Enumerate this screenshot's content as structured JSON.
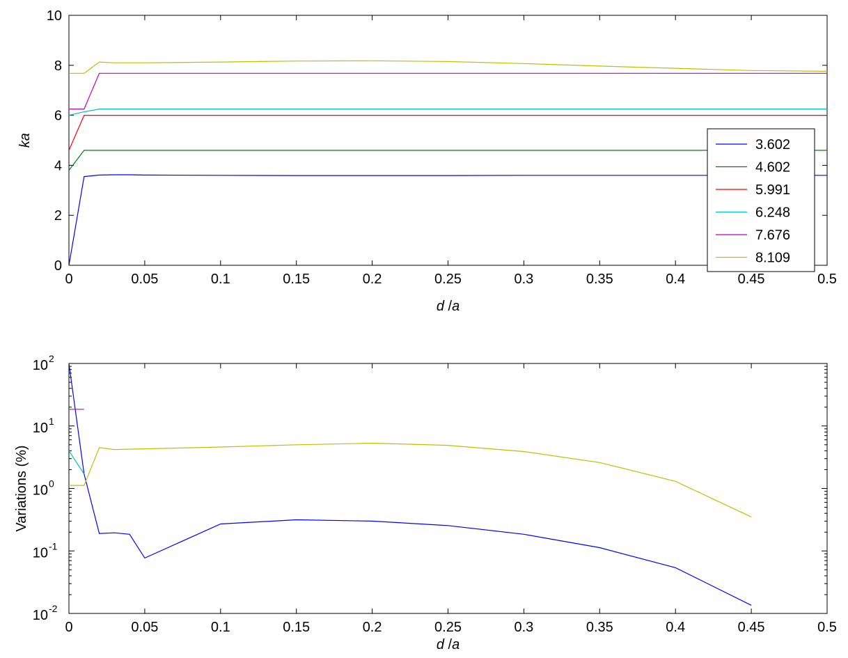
{
  "chart_data": [
    {
      "type": "line",
      "xlabel_parts": [
        "d",
        " /",
        "a"
      ],
      "ylabel": "ka",
      "xlim": [
        0,
        0.5
      ],
      "ylim": [
        0,
        10
      ],
      "yscale": "linear",
      "grid": false,
      "legend_position": "right",
      "x_ticks": [
        "0",
        "0.05",
        "0.1",
        "0.15",
        "0.2",
        "0.25",
        "0.3",
        "0.35",
        "0.4",
        "0.45",
        "0.5"
      ],
      "y_ticks": [
        "0",
        "2",
        "4",
        "6",
        "8",
        "10"
      ],
      "series": [
        {
          "name": "3.602",
          "color": "#0000ff",
          "x": [
            0,
            0.01,
            0.02,
            0.03,
            0.04,
            0.05,
            0.1,
            0.15,
            0.2,
            0.25,
            0.3,
            0.35,
            0.4,
            0.45,
            0.5
          ],
          "y": [
            0.0,
            3.55,
            3.61,
            3.62,
            3.62,
            3.61,
            3.6,
            3.59,
            3.59,
            3.59,
            3.6,
            3.6,
            3.6,
            3.6,
            3.6
          ]
        },
        {
          "name": "4.602",
          "color": "#008000",
          "x": [
            0,
            0.01,
            0.02,
            0.5
          ],
          "y": [
            3.8,
            4.6,
            4.6,
            4.6
          ]
        },
        {
          "name": "5.991",
          "color": "#ff0000",
          "x": [
            0,
            0.01,
            0.02,
            0.5
          ],
          "y": [
            4.6,
            6.0,
            6.0,
            6.0
          ]
        },
        {
          "name": "6.248",
          "color": "#00bfbf",
          "x": [
            0,
            0.01,
            0.02,
            0.5
          ],
          "y": [
            6.0,
            6.14,
            6.25,
            6.25
          ]
        },
        {
          "name": "7.676",
          "color": "#bf00bf",
          "x": [
            0,
            0.01,
            0.02,
            0.5
          ],
          "y": [
            6.25,
            6.25,
            7.68,
            7.68
          ]
        },
        {
          "name": "8.109",
          "color": "#bfbf00",
          "x": [
            0,
            0.01,
            0.02,
            0.03,
            0.05,
            0.1,
            0.15,
            0.2,
            0.25,
            0.3,
            0.35,
            0.4,
            0.45,
            0.5
          ],
          "y": [
            7.68,
            7.68,
            8.13,
            8.1,
            8.1,
            8.13,
            8.17,
            8.18,
            8.15,
            8.07,
            7.97,
            7.88,
            7.79,
            7.76
          ]
        }
      ]
    },
    {
      "type": "line",
      "xlabel_parts": [
        "d",
        " /",
        "a"
      ],
      "ylabel": "Variations (%)",
      "xlim": [
        0,
        0.5
      ],
      "ylim": [
        0.01,
        100
      ],
      "yscale": "log",
      "grid": false,
      "x_ticks": [
        "0",
        "0.05",
        "0.1",
        "0.15",
        "0.2",
        "0.25",
        "0.3",
        "0.35",
        "0.4",
        "0.45",
        "0.5"
      ],
      "y_ticks": [
        {
          "base": "10",
          "exp": "-2"
        },
        {
          "base": "10",
          "exp": "-1"
        },
        {
          "base": "10",
          "exp": "0"
        },
        {
          "base": "10",
          "exp": "1"
        },
        {
          "base": "10",
          "exp": "2"
        }
      ],
      "series": [
        {
          "color": "#0000ff",
          "x": [
            0,
            0.01,
            0.02,
            0.03,
            0.04,
            0.05,
            0.1,
            0.15,
            0.2,
            0.25,
            0.3,
            0.35,
            0.4,
            0.45
          ],
          "y": [
            100,
            1.7,
            0.19,
            0.195,
            0.185,
            0.077,
            0.27,
            0.315,
            0.3,
            0.255,
            0.185,
            0.113,
            0.054,
            0.0135
          ]
        },
        {
          "color": "#bf00bf",
          "x": [
            0,
            0.01
          ],
          "y": [
            18.5,
            18.5
          ]
        },
        {
          "color": "#00bfbf",
          "x": [
            0,
            0.01
          ],
          "y": [
            4.0,
            1.7
          ]
        },
        {
          "color": "#bfbf00",
          "x": [
            0,
            0.01,
            0.02,
            0.03,
            0.05,
            0.1,
            0.15,
            0.2,
            0.25,
            0.3,
            0.35,
            0.4,
            0.45
          ],
          "y": [
            1.12,
            1.12,
            4.5,
            4.2,
            4.3,
            4.6,
            5.0,
            5.3,
            4.9,
            3.9,
            2.6,
            1.3,
            0.35
          ]
        }
      ]
    }
  ]
}
